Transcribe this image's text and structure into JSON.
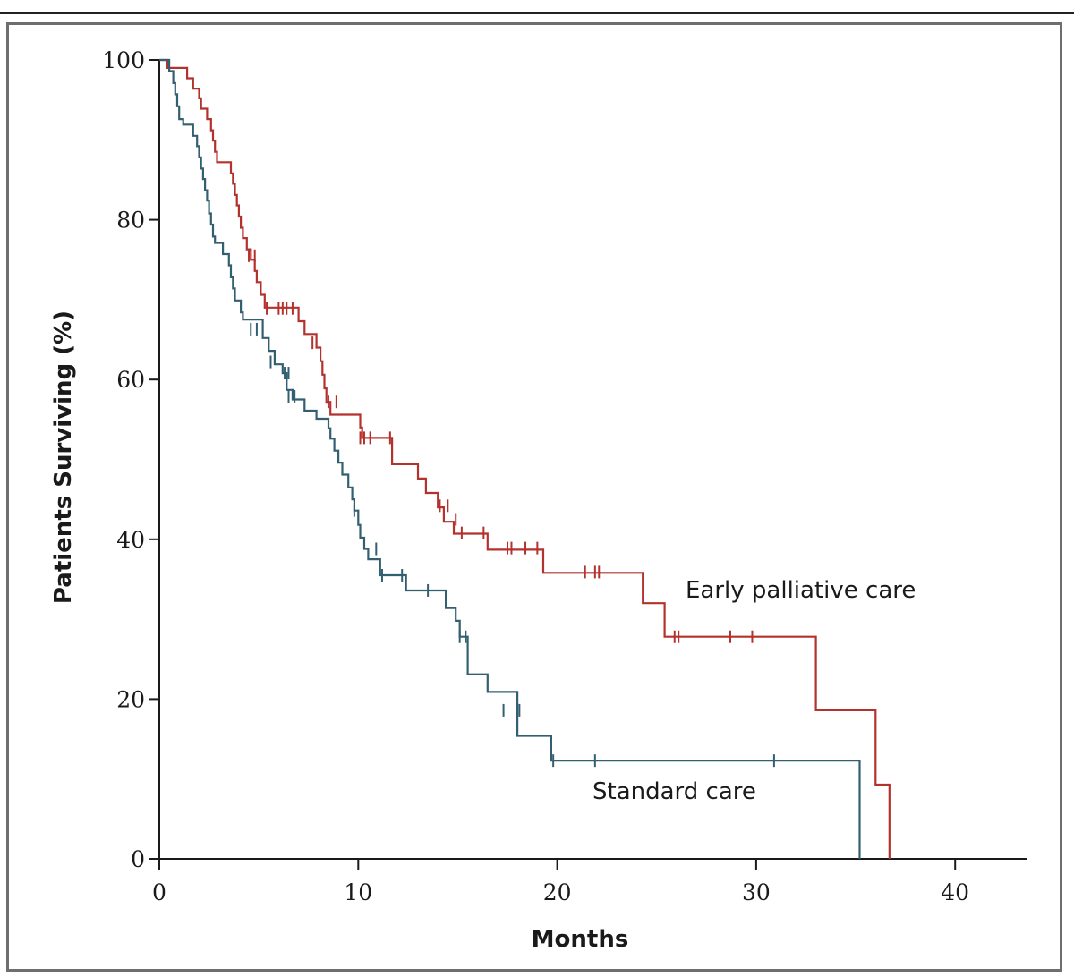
{
  "colors": {
    "early": "#b3322d",
    "standard": "#336070",
    "axis": "#1a1a1a"
  },
  "chart_data": {
    "type": "line",
    "subtype": "kaplan-meier step",
    "xlabel": "Months",
    "ylabel": "Patients Surviving (%)",
    "xlim": [
      0,
      43.5
    ],
    "ylim": [
      0,
      100
    ],
    "xticks": [
      0,
      10,
      20,
      30,
      40
    ],
    "yticks": [
      0,
      20,
      40,
      60,
      80,
      100
    ],
    "grid": false,
    "legend": "inline labels",
    "series": [
      {
        "name": "Early palliative care",
        "color": "#b3322d",
        "steps": [
          [
            0,
            100
          ],
          [
            0.4,
            99
          ],
          [
            1.4,
            97.7
          ],
          [
            1.7,
            96.4
          ],
          [
            2,
            95.2
          ],
          [
            2.1,
            93.9
          ],
          [
            2.4,
            92.6
          ],
          [
            2.6,
            91.2
          ],
          [
            2.7,
            89.9
          ],
          [
            2.8,
            88.5
          ],
          [
            2.9,
            87.2
          ],
          [
            3.6,
            85.8
          ],
          [
            3.7,
            84.5
          ],
          [
            3.8,
            83.1
          ],
          [
            3.9,
            81.8
          ],
          [
            4,
            80.4
          ],
          [
            4.1,
            79
          ],
          [
            4.2,
            77.7
          ],
          [
            4.4,
            76.3
          ],
          [
            4.6,
            75
          ],
          [
            4.8,
            73.6
          ],
          [
            4.9,
            72.2
          ],
          [
            5.1,
            70.6
          ],
          [
            5.3,
            69
          ],
          [
            7,
            67.3
          ],
          [
            7.3,
            65.7
          ],
          [
            7.9,
            64
          ],
          [
            8.1,
            62.3
          ],
          [
            8.2,
            60.6
          ],
          [
            8.3,
            58.9
          ],
          [
            8.4,
            57.2
          ],
          [
            8.6,
            55.6
          ],
          [
            10.1,
            54
          ],
          [
            10.2,
            52.7
          ],
          [
            11.7,
            49.4
          ],
          [
            13,
            47.6
          ],
          [
            13.4,
            45.8
          ],
          [
            14,
            44
          ],
          [
            14.3,
            42.2
          ],
          [
            14.8,
            40.7
          ],
          [
            16.5,
            38.7
          ],
          [
            19.3,
            35.8
          ],
          [
            24.3,
            32
          ],
          [
            25.4,
            27.8
          ],
          [
            33,
            18.6
          ],
          [
            36,
            9.3
          ],
          [
            36.7,
            0
          ]
        ],
        "censored": [
          [
            4.5,
            75.5
          ],
          [
            4.8,
            75.5
          ],
          [
            5.4,
            68.9
          ],
          [
            6,
            68.9
          ],
          [
            6.2,
            68.9
          ],
          [
            6.4,
            68.9
          ],
          [
            6.7,
            68.9
          ],
          [
            7.7,
            64.6
          ],
          [
            8.5,
            57.2
          ],
          [
            8.9,
            57.2
          ],
          [
            10.1,
            52.7
          ],
          [
            10.3,
            52.7
          ],
          [
            10.6,
            52.7
          ],
          [
            11.6,
            52.7
          ],
          [
            14.1,
            44.2
          ],
          [
            14.5,
            44.2
          ],
          [
            14.9,
            42.5
          ],
          [
            15.2,
            40.8
          ],
          [
            16.3,
            40.8
          ],
          [
            17.5,
            38.9
          ],
          [
            17.7,
            38.9
          ],
          [
            18.4,
            38.9
          ],
          [
            19,
            38.9
          ],
          [
            21.4,
            35.9
          ],
          [
            21.9,
            35.9
          ],
          [
            22.1,
            35.9
          ],
          [
            25.9,
            27.8
          ],
          [
            26.1,
            27.8
          ],
          [
            28.7,
            27.8
          ],
          [
            29.8,
            27.8
          ]
        ]
      },
      {
        "name": "Standard care",
        "color": "#336070",
        "steps": [
          [
            0,
            100
          ],
          [
            0.5,
            98.6
          ],
          [
            0.7,
            97.1
          ],
          [
            0.8,
            95.7
          ],
          [
            0.9,
            94.2
          ],
          [
            1,
            92.6
          ],
          [
            1.2,
            91.9
          ],
          [
            1.7,
            90.5
          ],
          [
            1.9,
            89.2
          ],
          [
            2,
            87.8
          ],
          [
            2.1,
            86.4
          ],
          [
            2.2,
            85.1
          ],
          [
            2.3,
            83.7
          ],
          [
            2.4,
            82.4
          ],
          [
            2.5,
            80.8
          ],
          [
            2.6,
            79.4
          ],
          [
            2.7,
            77.9
          ],
          [
            2.8,
            77.1
          ],
          [
            3.2,
            75.7
          ],
          [
            3.5,
            74.3
          ],
          [
            3.6,
            72.8
          ],
          [
            3.7,
            71.4
          ],
          [
            3.8,
            69.9
          ],
          [
            4.1,
            68.4
          ],
          [
            4.2,
            67.5
          ],
          [
            5.2,
            65.2
          ],
          [
            5.5,
            63.6
          ],
          [
            5.8,
            61.9
          ],
          [
            6.2,
            60.8
          ],
          [
            6.4,
            58.7
          ],
          [
            6.7,
            57.5
          ],
          [
            7.3,
            56.1
          ],
          [
            7.9,
            55.1
          ],
          [
            8.5,
            53.9
          ],
          [
            8.6,
            52.6
          ],
          [
            8.8,
            51.1
          ],
          [
            9,
            49.6
          ],
          [
            9.2,
            48.1
          ],
          [
            9.5,
            46.5
          ],
          [
            9.7,
            45
          ],
          [
            9.8,
            43.6
          ],
          [
            10,
            41.8
          ],
          [
            10.1,
            40.2
          ],
          [
            10.3,
            38.8
          ],
          [
            10.5,
            37.5
          ],
          [
            11.1,
            35.5
          ],
          [
            12.4,
            33.6
          ],
          [
            14.4,
            31.4
          ],
          [
            14.9,
            29.8
          ],
          [
            15.1,
            27.8
          ],
          [
            15.5,
            23.1
          ],
          [
            16.5,
            20.9
          ],
          [
            18,
            15.4
          ],
          [
            19.7,
            12.3
          ],
          [
            35.2,
            0
          ]
        ],
        "censored": [
          [
            4.6,
            66.3
          ],
          [
            4.9,
            66.3
          ],
          [
            5.6,
            62.2
          ],
          [
            6.3,
            60.8
          ],
          [
            6.5,
            60.8
          ],
          [
            6.5,
            57.9
          ],
          [
            6.8,
            57.9
          ],
          [
            9.8,
            43.6
          ],
          [
            10.9,
            38.8
          ],
          [
            11.2,
            35.5
          ],
          [
            12.2,
            35.5
          ],
          [
            13.5,
            33.6
          ],
          [
            15.1,
            27.8
          ],
          [
            15.4,
            27.8
          ],
          [
            17.3,
            18.6
          ],
          [
            18.1,
            18.6
          ],
          [
            19.8,
            12.3
          ],
          [
            21.9,
            12.3
          ],
          [
            30.9,
            12.3
          ]
        ]
      }
    ],
    "annotations": [
      "Early palliative care",
      "Standard care"
    ]
  }
}
